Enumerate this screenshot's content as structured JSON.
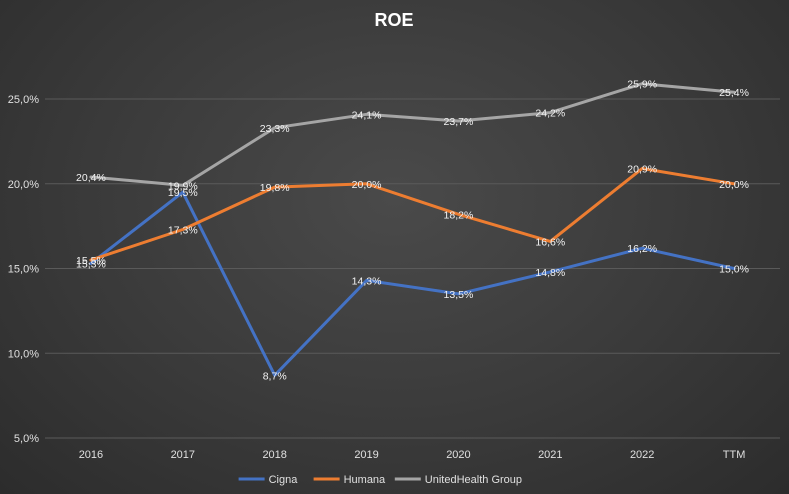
{
  "chart_data": {
    "type": "line",
    "title": "ROE",
    "xlabel": "",
    "ylabel": "",
    "categories": [
      "2016",
      "2017",
      "2018",
      "2019",
      "2020",
      "2021",
      "2022",
      "TTM"
    ],
    "ylim": [
      5,
      25
    ],
    "yticks": [
      5,
      10,
      15,
      20,
      25
    ],
    "ytick_labels": [
      "5,0%",
      "10,0%",
      "15,0%",
      "20,0%",
      "25,0%"
    ],
    "grid": true,
    "legend_position": "bottom",
    "series": [
      {
        "name": "Cigna",
        "color": "#4472c4",
        "values": [
          15.3,
          19.5,
          8.7,
          14.3,
          13.5,
          14.8,
          16.2,
          15.0
        ],
        "labels": [
          "15,3%",
          "19,5%",
          "8,7%",
          "14,3%",
          "13,5%",
          "14,8%",
          "16,2%",
          "15,0%"
        ]
      },
      {
        "name": "Humana",
        "color": "#ed7d31",
        "values": [
          15.5,
          17.3,
          19.8,
          20.0,
          18.2,
          16.6,
          20.9,
          20.0
        ],
        "labels": [
          "15,5%",
          "17,3%",
          "19,8%",
          "20,0%",
          "18,2%",
          "16,6%",
          "20,9%",
          "20,0%"
        ]
      },
      {
        "name": "UnitedHealth Group",
        "color": "#a5a5a5",
        "values": [
          20.4,
          19.9,
          23.3,
          24.1,
          23.7,
          24.2,
          25.9,
          25.4
        ],
        "labels": [
          "20,4%",
          "19,9%",
          "23,3%",
          "24,1%",
          "23,7%",
          "24,2%",
          "25,9%",
          "25,4%"
        ]
      }
    ]
  }
}
